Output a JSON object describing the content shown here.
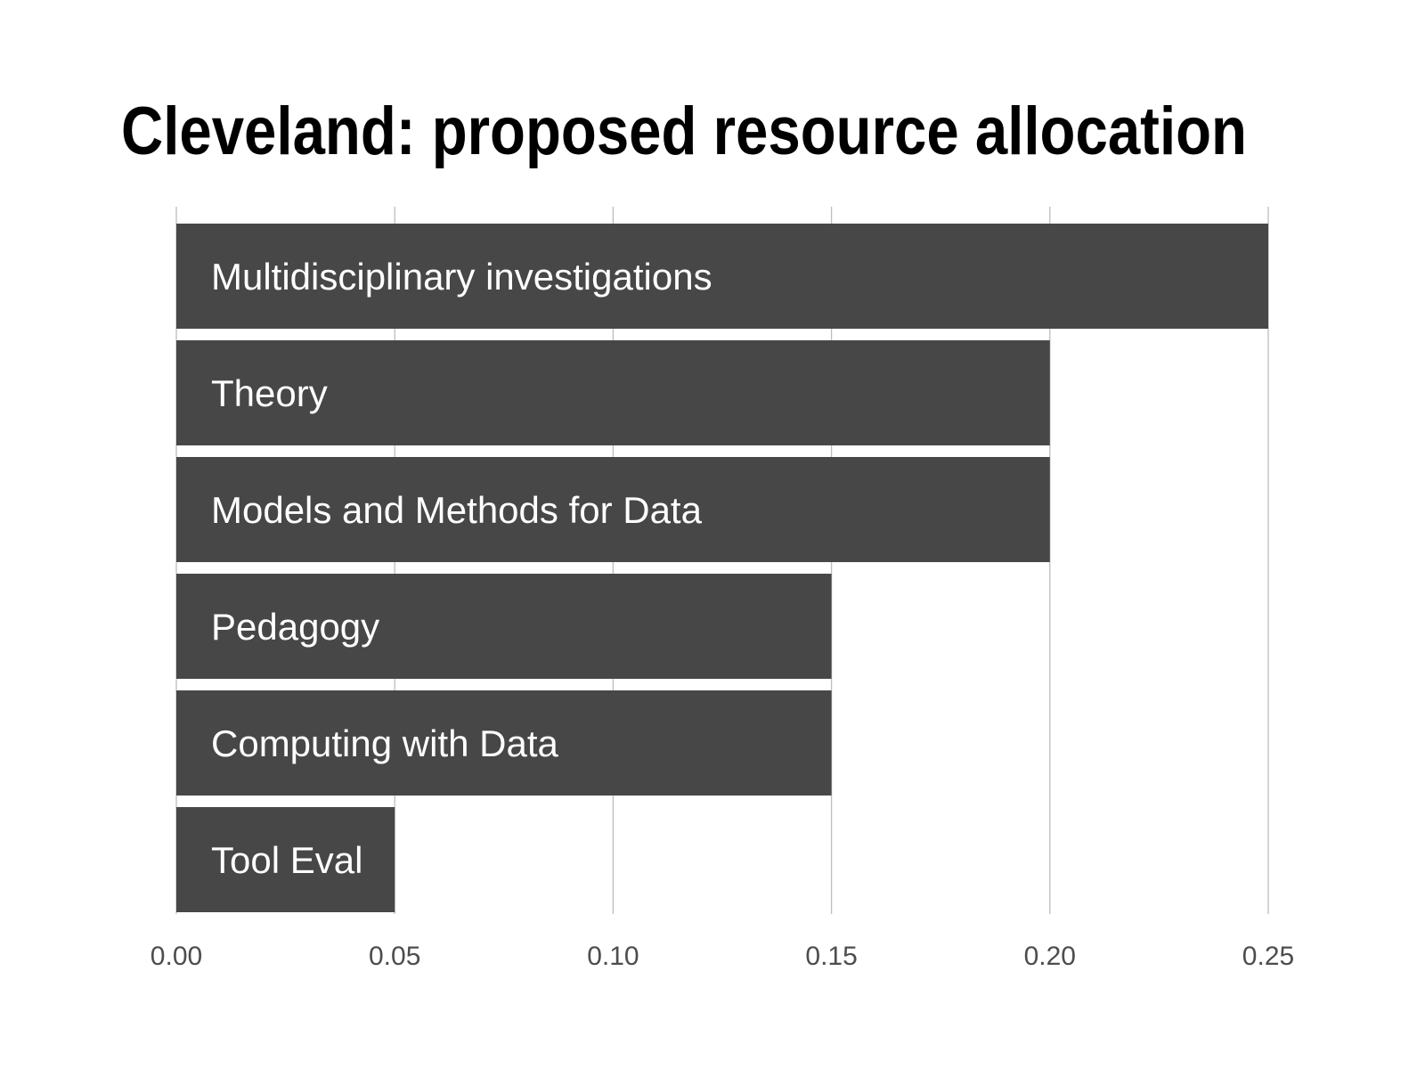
{
  "chart_data": {
    "type": "bar",
    "orientation": "horizontal",
    "title": "Cleveland: proposed resource allocation",
    "xlabel": "",
    "ylabel": "",
    "categories": [
      "Multidisciplinary investigations",
      "Theory",
      "Models and Methods for Data",
      "Pedagogy",
      "Computing with Data",
      "Tool Eval"
    ],
    "values": [
      0.25,
      0.2,
      0.2,
      0.15,
      0.15,
      0.05
    ],
    "xlim": [
      0,
      0.25
    ],
    "xticks": [
      "0.00",
      "0.05",
      "0.10",
      "0.15",
      "0.20",
      "0.25"
    ],
    "grid": "vertical",
    "legend": "none",
    "bar_labels_position": "inside-left",
    "colors": {
      "bar": "#474747",
      "bar_label": "#ffffff",
      "grid": "#bdbdbd",
      "tick_label": "#4d4d4d",
      "title": "#000000"
    }
  }
}
